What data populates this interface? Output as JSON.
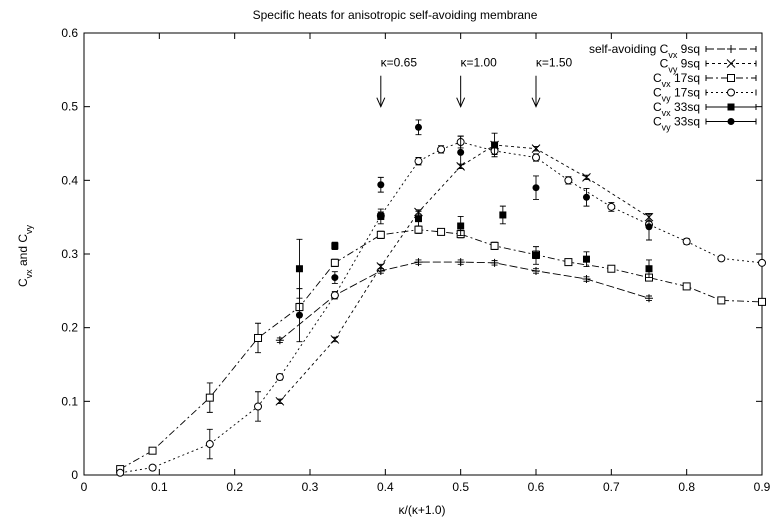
{
  "chart_data": {
    "type": "scatter",
    "title": "Specific heats for anisotropic self-avoiding membrane",
    "xlabel": "κ/(κ+1.0)",
    "ylabel": "C<sub>vx</sub> and C<sub>vy</sub>",
    "ylabel_parts": [
      {
        "t": "C",
        "sub": false
      },
      {
        "t": "vx",
        "sub": true
      },
      {
        "t": " and C",
        "sub": false
      },
      {
        "t": "vy",
        "sub": true
      }
    ],
    "xlim": [
      0,
      0.9
    ],
    "ylim": [
      0,
      0.6
    ],
    "xticks": [
      0,
      0.1,
      0.2,
      0.3,
      0.4,
      0.5,
      0.6,
      0.7,
      0.8,
      0.9
    ],
    "xtick_labels": [
      "0",
      "0.1",
      "0.2",
      "0.3",
      "0.4",
      "0.5",
      "0.6",
      "0.7",
      "0.8",
      "0.9"
    ],
    "yticks": [
      0,
      0.1,
      0.2,
      0.3,
      0.4,
      0.5,
      0.6
    ],
    "ytick_labels": [
      "0",
      "0.1",
      "0.2",
      "0.3",
      "0.4",
      "0.5",
      "0.6"
    ],
    "grid": false,
    "legend_position": "top-right",
    "annotations": [
      {
        "text": "κ=0.65",
        "x": 0.394,
        "y": 0.56,
        "arrow_to": 0.5
      },
      {
        "text": "κ=1.00",
        "x": 0.5,
        "y": 0.56,
        "arrow_to": 0.5
      },
      {
        "text": "κ=1.50",
        "x": 0.6,
        "y": 0.56,
        "arrow_to": 0.5
      }
    ],
    "series": [
      {
        "name": "self-avoiding Cvx 9sq",
        "legend_parts": [
          {
            "t": "self-avoiding C",
            "sub": false
          },
          {
            "t": "vx",
            "sub": true
          },
          {
            "t": "  9sq",
            "sub": false
          }
        ],
        "marker": "plus",
        "dash": "8,3",
        "points": [
          {
            "x": 0.26,
            "y": 0.183,
            "err": 0.003
          },
          {
            "x": 0.333,
            "y": 0.244,
            "err": 0.003
          },
          {
            "x": 0.394,
            "y": 0.277,
            "err": 0.003
          },
          {
            "x": 0.444,
            "y": 0.289,
            "err": 0.003
          },
          {
            "x": 0.5,
            "y": 0.289,
            "err": 0.003
          },
          {
            "x": 0.545,
            "y": 0.288,
            "err": 0.003
          },
          {
            "x": 0.6,
            "y": 0.277,
            "err": 0.003
          },
          {
            "x": 0.667,
            "y": 0.266,
            "err": 0.003
          },
          {
            "x": 0.75,
            "y": 0.24,
            "err": 0.003
          }
        ]
      },
      {
        "name": "Cvy 9sq",
        "legend_parts": [
          {
            "t": "C",
            "sub": false
          },
          {
            "t": "vy",
            "sub": true
          },
          {
            "t": "  9sq",
            "sub": false
          }
        ],
        "marker": "cross",
        "dash": "3,3",
        "points": [
          {
            "x": 0.26,
            "y": 0.1,
            "err": 0.003
          },
          {
            "x": 0.333,
            "y": 0.184,
            "err": 0.003
          },
          {
            "x": 0.394,
            "y": 0.283,
            "err": 0.003
          },
          {
            "x": 0.444,
            "y": 0.357,
            "err": 0.003
          },
          {
            "x": 0.5,
            "y": 0.419,
            "err": 0.003
          },
          {
            "x": 0.545,
            "y": 0.448,
            "err": 0.003
          },
          {
            "x": 0.6,
            "y": 0.443,
            "err": 0.003
          },
          {
            "x": 0.667,
            "y": 0.404,
            "err": 0.003
          },
          {
            "x": 0.75,
            "y": 0.35,
            "err": 0.004
          }
        ]
      },
      {
        "name": "Cvx 17sq",
        "legend_parts": [
          {
            "t": "C",
            "sub": false
          },
          {
            "t": "vx",
            "sub": true
          },
          {
            "t": " 17sq",
            "sub": false
          }
        ],
        "marker": "square-open",
        "dash": "7,3,2,3",
        "points": [
          {
            "x": 0.048,
            "y": 0.008,
            "err": 0.004
          },
          {
            "x": 0.091,
            "y": 0.033,
            "err": 0.004
          },
          {
            "x": 0.167,
            "y": 0.105,
            "err": 0.02
          },
          {
            "x": 0.231,
            "y": 0.186,
            "err": 0.02
          },
          {
            "x": 0.286,
            "y": 0.228,
            "err": 0.005
          },
          {
            "x": 0.333,
            "y": 0.288,
            "err": 0.005
          },
          {
            "x": 0.394,
            "y": 0.326,
            "err": 0.005
          },
          {
            "x": 0.444,
            "y": 0.333,
            "err": 0.005
          },
          {
            "x": 0.474,
            "y": 0.33,
            "err": 0.004
          },
          {
            "x": 0.5,
            "y": 0.327,
            "err": 0.005
          },
          {
            "x": 0.545,
            "y": 0.311,
            "err": 0.005
          },
          {
            "x": 0.6,
            "y": 0.299,
            "err": 0.005
          },
          {
            "x": 0.643,
            "y": 0.289,
            "err": 0.004
          },
          {
            "x": 0.7,
            "y": 0.28,
            "err": 0.004
          },
          {
            "x": 0.75,
            "y": 0.268,
            "err": 0.004
          },
          {
            "x": 0.8,
            "y": 0.256,
            "err": 0.004
          },
          {
            "x": 0.846,
            "y": 0.237,
            "err": 0.003
          },
          {
            "x": 0.9,
            "y": 0.235,
            "err": 0.003
          }
        ]
      },
      {
        "name": "Cvy 17sq",
        "legend_parts": [
          {
            "t": "C",
            "sub": false
          },
          {
            "t": "vy",
            "sub": true
          },
          {
            "t": " 17sq",
            "sub": false
          }
        ],
        "marker": "circle-open",
        "dash": "2,3",
        "points": [
          {
            "x": 0.048,
            "y": 0.003,
            "err": 0.003
          },
          {
            "x": 0.091,
            "y": 0.01,
            "err": 0.003
          },
          {
            "x": 0.167,
            "y": 0.042,
            "err": 0.02
          },
          {
            "x": 0.231,
            "y": 0.093,
            "err": 0.02
          },
          {
            "x": 0.26,
            "y": 0.133,
            "err": 0.004
          },
          {
            "x": 0.333,
            "y": 0.244,
            "err": 0.005
          },
          {
            "x": 0.394,
            "y": 0.352,
            "err": 0.005
          },
          {
            "x": 0.444,
            "y": 0.426,
            "err": 0.005
          },
          {
            "x": 0.474,
            "y": 0.442,
            "err": 0.005
          },
          {
            "x": 0.5,
            "y": 0.452,
            "err": 0.008
          },
          {
            "x": 0.545,
            "y": 0.44,
            "err": 0.005
          },
          {
            "x": 0.6,
            "y": 0.431,
            "err": 0.005
          },
          {
            "x": 0.643,
            "y": 0.4,
            "err": 0.005
          },
          {
            "x": 0.7,
            "y": 0.364,
            "err": 0.006
          },
          {
            "x": 0.75,
            "y": 0.34,
            "err": 0.004
          },
          {
            "x": 0.8,
            "y": 0.317,
            "err": 0.004
          },
          {
            "x": 0.846,
            "y": 0.294,
            "err": 0.003
          },
          {
            "x": 0.9,
            "y": 0.288,
            "err": 0.003
          }
        ]
      },
      {
        "name": "Cvx 33sq",
        "legend_parts": [
          {
            "t": "C",
            "sub": false
          },
          {
            "t": "vx",
            "sub": true
          },
          {
            "t": " 33sq",
            "sub": false
          }
        ],
        "marker": "square-filled",
        "dash": "",
        "points": [
          {
            "x": 0.286,
            "y": 0.28,
            "err": 0.04
          },
          {
            "x": 0.333,
            "y": 0.311,
            "err": 0.005
          },
          {
            "x": 0.394,
            "y": 0.351,
            "err": 0.01
          },
          {
            "x": 0.444,
            "y": 0.348,
            "err": 0.01
          },
          {
            "x": 0.5,
            "y": 0.338,
            "err": 0.013
          },
          {
            "x": 0.545,
            "y": 0.448,
            "err": 0.016
          },
          {
            "x": 0.556,
            "y": 0.353,
            "err": 0.012
          },
          {
            "x": 0.6,
            "y": 0.298,
            "err": 0.012
          },
          {
            "x": 0.667,
            "y": 0.293,
            "err": 0.01
          },
          {
            "x": 0.75,
            "y": 0.28,
            "err": 0.012
          }
        ]
      },
      {
        "name": "Cvy 33sq",
        "legend_parts": [
          {
            "t": "C",
            "sub": false
          },
          {
            "t": "vy",
            "sub": true
          },
          {
            "t": " 33sq",
            "sub": false
          }
        ],
        "marker": "circle-filled",
        "dash": "",
        "points": [
          {
            "x": 0.286,
            "y": 0.217,
            "err": 0.036
          },
          {
            "x": 0.333,
            "y": 0.268,
            "err": 0.008
          },
          {
            "x": 0.394,
            "y": 0.394,
            "err": 0.01
          },
          {
            "x": 0.444,
            "y": 0.472,
            "err": 0.01
          },
          {
            "x": 0.5,
            "y": 0.438,
            "err": 0.022
          },
          {
            "x": 0.6,
            "y": 0.39,
            "err": 0.016
          },
          {
            "x": 0.667,
            "y": 0.377,
            "err": 0.012
          },
          {
            "x": 0.75,
            "y": 0.337,
            "err": 0.018
          }
        ]
      }
    ]
  }
}
